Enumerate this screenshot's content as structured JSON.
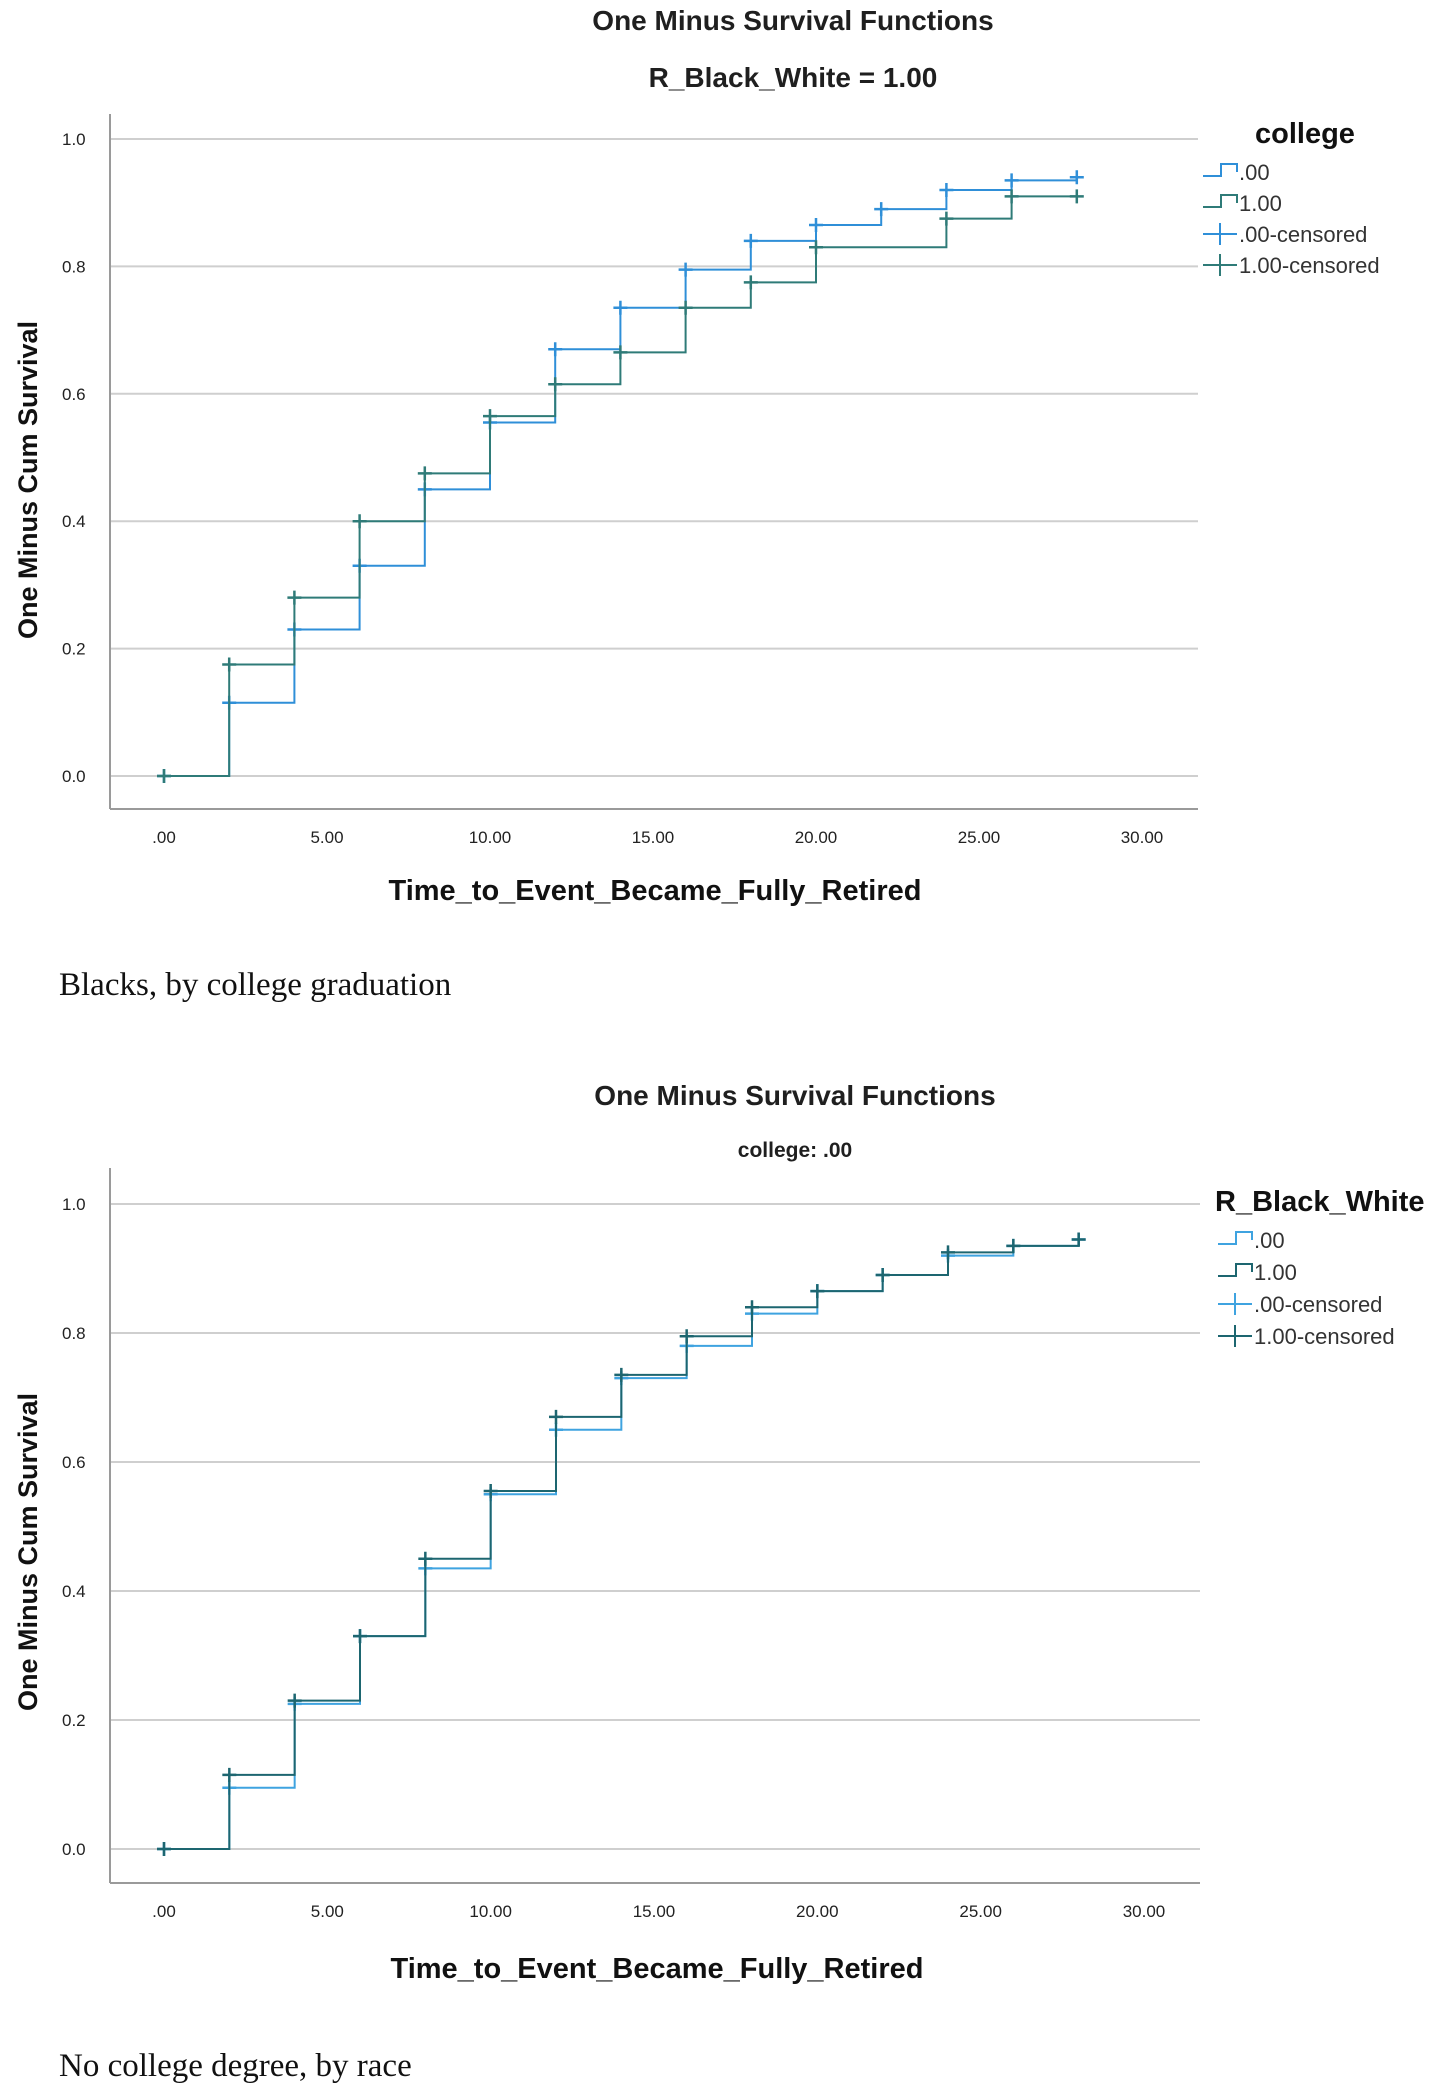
{
  "chart_data": [
    {
      "type": "line",
      "title": "One Minus Survival Functions",
      "subtitle": "R_Black_White = 1.00",
      "xlabel": "Time_to_Event_Became_Fully_Retired",
      "ylabel": "One Minus Cum Survival",
      "xlim": [
        0,
        30
      ],
      "ylim": [
        0,
        1
      ],
      "x_ticks": [
        ".00",
        "5.00",
        "10.00",
        "15.00",
        "20.00",
        "25.00",
        "30.00"
      ],
      "y_ticks": [
        "0.0",
        "0.2",
        "0.4",
        "0.6",
        "0.8",
        "1.0"
      ],
      "grid": "horizontal",
      "legend": {
        "title": "college",
        "position": "right",
        "entries": [
          ".00",
          "1.00",
          ".00-censored",
          "1.00-censored"
        ]
      },
      "series": [
        {
          "name": ".00",
          "color": "#2f8fd8",
          "x": [
            0,
            2,
            4,
            6,
            8,
            10,
            12,
            14,
            16,
            18,
            20,
            22,
            24,
            26,
            28
          ],
          "y": [
            0.0,
            0.115,
            0.23,
            0.33,
            0.45,
            0.555,
            0.67,
            0.735,
            0.795,
            0.84,
            0.865,
            0.89,
            0.92,
            0.935,
            0.94
          ]
        },
        {
          "name": "1.00",
          "color": "#2f7b78",
          "x": [
            0,
            2,
            4,
            6,
            8,
            10,
            12,
            14,
            16,
            18,
            20,
            24,
            26,
            28
          ],
          "y": [
            0.0,
            0.175,
            0.28,
            0.4,
            0.475,
            0.565,
            0.615,
            0.665,
            0.735,
            0.775,
            0.83,
            0.875,
            0.91,
            0.91
          ]
        }
      ]
    },
    {
      "type": "line",
      "title": "One Minus Survival Functions",
      "subtitle": "college: .00",
      "xlabel": "Time_to_Event_Became_Fully_Retired",
      "ylabel": "One Minus Cum Survival",
      "xlim": [
        0,
        30
      ],
      "ylim": [
        0,
        1
      ],
      "x_ticks": [
        ".00",
        "5.00",
        "10.00",
        "15.00",
        "20.00",
        "25.00",
        "30.00"
      ],
      "y_ticks": [
        "0.0",
        "0.2",
        "0.4",
        "0.6",
        "0.8",
        "1.0"
      ],
      "grid": "horizontal",
      "legend": {
        "title": "R_Black_White",
        "position": "right",
        "entries": [
          ".00",
          "1.00",
          ".00-censored",
          "1.00-censored"
        ]
      },
      "series": [
        {
          "name": ".00",
          "color": "#3fa3e0",
          "x": [
            0,
            2,
            4,
            6,
            8,
            10,
            12,
            14,
            16,
            18,
            20,
            22,
            24,
            26,
            28
          ],
          "y": [
            0.0,
            0.095,
            0.225,
            0.33,
            0.435,
            0.55,
            0.65,
            0.73,
            0.78,
            0.83,
            0.865,
            0.89,
            0.92,
            0.935,
            0.945
          ]
        },
        {
          "name": "1.00",
          "color": "#1d6670",
          "x": [
            0,
            2,
            4,
            6,
            8,
            10,
            12,
            14,
            16,
            18,
            20,
            22,
            24,
            26,
            28
          ],
          "y": [
            0.0,
            0.115,
            0.23,
            0.33,
            0.45,
            0.555,
            0.67,
            0.735,
            0.795,
            0.84,
            0.865,
            0.89,
            0.925,
            0.935,
            0.945
          ]
        }
      ]
    }
  ],
  "captions": [
    "Blacks, by college graduation",
    "No college degree, by race"
  ]
}
